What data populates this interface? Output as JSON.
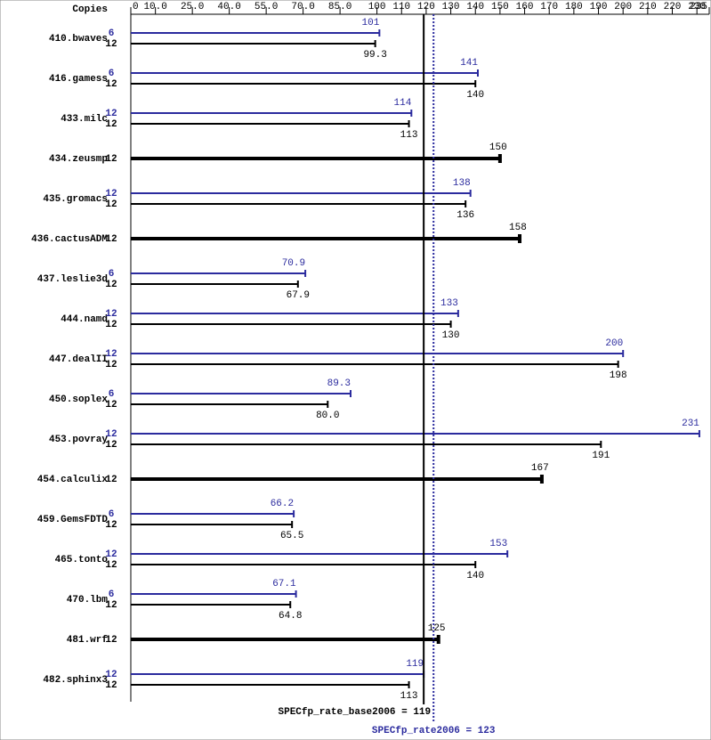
{
  "chart_data": {
    "type": "bar",
    "orientation": "horizontal",
    "axis_label": "Copies",
    "categories": [
      "410.bwaves",
      "416.gamess",
      "433.milc",
      "434.zeusmp",
      "435.gromacs",
      "436.cactusADM",
      "437.leslie3d",
      "444.namd",
      "447.dealII",
      "450.soplex",
      "453.povray",
      "454.calculix",
      "459.GemsFDTD",
      "465.tonto",
      "470.lbm",
      "481.wrf",
      "482.sphinx3"
    ],
    "xlim": [
      0,
      235
    ],
    "xticks": [
      0,
      {
        "value": 10,
        "label": "10.0"
      },
      {
        "value": 25,
        "label": "25.0"
      },
      {
        "value": 40,
        "label": "40.0"
      },
      {
        "value": 55,
        "label": "55.0"
      },
      {
        "value": 70,
        "label": "70.0"
      },
      {
        "value": 85,
        "label": "85.0"
      },
      100,
      110,
      120,
      130,
      140,
      150,
      160,
      170,
      180,
      190,
      200,
      210,
      220,
      230,
      235
    ],
    "series": [
      {
        "color": "#2b2b9e",
        "copies": [
          6,
          6,
          12,
          null,
          12,
          null,
          6,
          12,
          12,
          6,
          12,
          null,
          6,
          12,
          6,
          null,
          12
        ],
        "values": [
          101,
          141,
          114,
          null,
          138,
          null,
          70.9,
          133,
          200,
          89.3,
          231,
          null,
          66.2,
          153,
          67.1,
          null,
          119
        ],
        "value_labels": [
          "101",
          "141",
          "114",
          null,
          "138",
          null,
          "70.9",
          "133",
          "200",
          "89.3",
          "231",
          null,
          "66.2",
          "153",
          "67.1",
          null,
          "119"
        ]
      },
      {
        "color": "#000000",
        "copies": [
          12,
          12,
          12,
          12,
          12,
          12,
          12,
          12,
          12,
          12,
          12,
          12,
          12,
          12,
          12,
          12,
          12
        ],
        "values": [
          99.3,
          140,
          113,
          150,
          136,
          158,
          67.9,
          130,
          198,
          80.0,
          191,
          167,
          65.5,
          140,
          64.8,
          125,
          113
        ],
        "value_labels": [
          "99.3",
          "140",
          "113",
          "150",
          "136",
          "158",
          "67.9",
          "130",
          "198",
          "80.0",
          "191",
          "167",
          "65.5",
          "140",
          "64.8",
          "125",
          "113"
        ]
      }
    ],
    "reference_lines": [
      {
        "value": 119,
        "label": "SPECfp_rate_base2006 = 119",
        "color": "#000000",
        "style": "solid"
      },
      {
        "value": 123,
        "label": "SPECfp_rate2006 = 123",
        "color": "#2b2b9e",
        "style": "dotted"
      }
    ]
  }
}
